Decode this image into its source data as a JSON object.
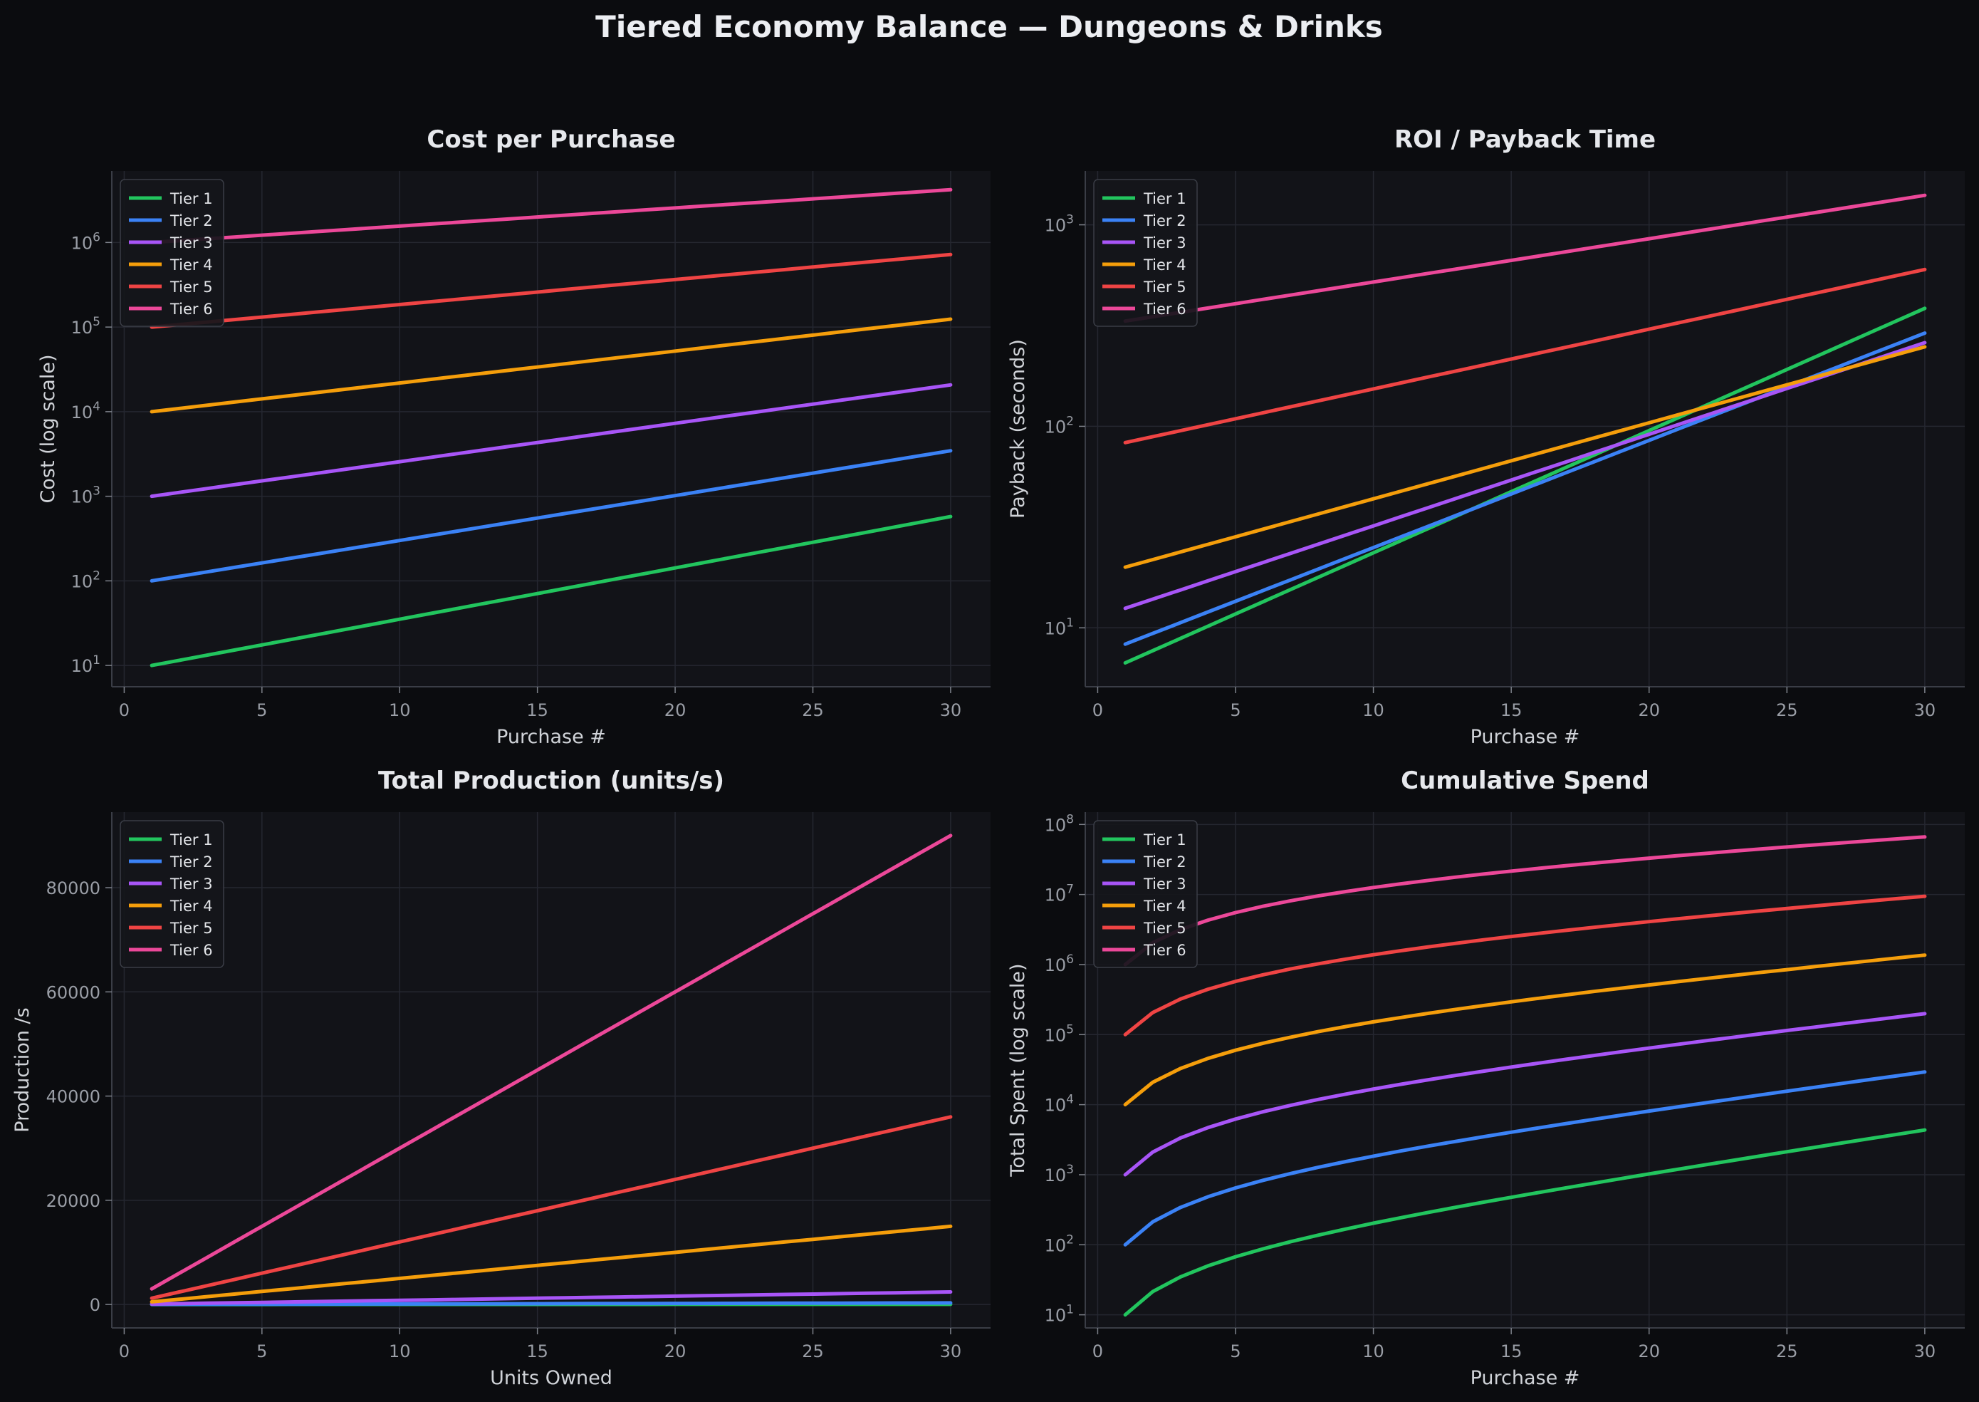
{
  "figure_title": "Tiered Economy Balance — Dungeons & Drinks",
  "colors": {
    "background": "#0b0c0f",
    "panel": "#121318",
    "Tier 1": "#22c55e",
    "Tier 2": "#3b82f6",
    "Tier 3": "#a855f7",
    "Tier 4": "#f59e0b",
    "Tier 5": "#ef4444",
    "Tier 6": "#ec4899"
  },
  "chart_data": [
    {
      "type": "line",
      "title": "Cost per Purchase",
      "xlabel": "Purchase #",
      "ylabel": "Cost (log scale)",
      "yscale": "log",
      "xlim": [
        -0.45,
        31.45
      ],
      "ylim": [
        5.6,
        7000000
      ],
      "xticks": [
        0,
        5,
        10,
        15,
        20,
        25,
        30
      ],
      "yticks": [
        {
          "v": 10,
          "exp": "1"
        },
        {
          "v": 100,
          "exp": "2"
        },
        {
          "v": 1000,
          "exp": "3"
        },
        {
          "v": 10000,
          "exp": "4"
        },
        {
          "v": 100000,
          "exp": "5"
        },
        {
          "v": 1000000,
          "exp": "6"
        }
      ],
      "grid": true,
      "legend": "top-left",
      "series": [
        {
          "name": "Tier 1",
          "model": "exp",
          "x0": 1,
          "x1": 30,
          "y0": 10,
          "y1": 575
        },
        {
          "name": "Tier 2",
          "model": "exp",
          "x0": 1,
          "x1": 30,
          "y0": 100,
          "y1": 3450
        },
        {
          "name": "Tier 3",
          "model": "exp",
          "x0": 1,
          "x1": 30,
          "y0": 1000,
          "y1": 20700
        },
        {
          "name": "Tier 4",
          "model": "exp",
          "x0": 1,
          "x1": 30,
          "y0": 10000,
          "y1": 124000
        },
        {
          "name": "Tier 5",
          "model": "exp",
          "x0": 1,
          "x1": 30,
          "y0": 100000,
          "y1": 720000
        },
        {
          "name": "Tier 6",
          "model": "exp",
          "x0": 1,
          "x1": 30,
          "y0": 1000000,
          "y1": 4200000
        }
      ]
    },
    {
      "type": "line",
      "title": "ROI / Payback Time",
      "xlabel": "Purchase #",
      "ylabel": "Payback (seconds)",
      "yscale": "log",
      "xlim": [
        -0.45,
        31.45
      ],
      "ylim": [
        5.1,
        1850
      ],
      "xticks": [
        0,
        5,
        10,
        15,
        20,
        25,
        30
      ],
      "yticks": [
        {
          "v": 10,
          "exp": "1"
        },
        {
          "v": 100,
          "exp": "2"
        },
        {
          "v": 1000,
          "exp": "3"
        }
      ],
      "grid": true,
      "legend": "top-left",
      "series": [
        {
          "name": "Tier 1",
          "model": "exp",
          "x0": 1,
          "x1": 30,
          "y0": 6.7,
          "y1": 385
        },
        {
          "name": "Tier 2",
          "model": "exp",
          "x0": 1,
          "x1": 30,
          "y0": 8.3,
          "y1": 290
        },
        {
          "name": "Tier 3",
          "model": "exp",
          "x0": 1,
          "x1": 30,
          "y0": 12.5,
          "y1": 260
        },
        {
          "name": "Tier 4",
          "model": "exp",
          "x0": 1,
          "x1": 30,
          "y0": 20,
          "y1": 248
        },
        {
          "name": "Tier 5",
          "model": "exp",
          "x0": 1,
          "x1": 30,
          "y0": 83,
          "y1": 600
        },
        {
          "name": "Tier 6",
          "model": "exp",
          "x0": 1,
          "x1": 30,
          "y0": 333,
          "y1": 1400
        }
      ]
    },
    {
      "type": "line",
      "title": "Total Production (units/s)",
      "xlabel": "Units Owned",
      "ylabel": "Production /s",
      "yscale": "linear",
      "xlim": [
        -0.45,
        31.45
      ],
      "ylim": [
        -4500,
        94500
      ],
      "xticks": [
        0,
        5,
        10,
        15,
        20,
        25,
        30
      ],
      "yticks": [
        {
          "v": 0,
          "label": "0"
        },
        {
          "v": 20000,
          "label": "20000"
        },
        {
          "v": 40000,
          "label": "40000"
        },
        {
          "v": 60000,
          "label": "60000"
        },
        {
          "v": 80000,
          "label": "80000"
        }
      ],
      "grid": true,
      "legend": "top-left",
      "series": [
        {
          "name": "Tier 1",
          "model": "lin",
          "x0": 1,
          "x1": 30,
          "y0": 1,
          "y1": 30
        },
        {
          "name": "Tier 2",
          "model": "lin",
          "x0": 1,
          "x1": 30,
          "y0": 10,
          "y1": 300
        },
        {
          "name": "Tier 3",
          "model": "lin",
          "x0": 1,
          "x1": 30,
          "y0": 80,
          "y1": 2400
        },
        {
          "name": "Tier 4",
          "model": "lin",
          "x0": 1,
          "x1": 30,
          "y0": 500,
          "y1": 15000
        },
        {
          "name": "Tier 5",
          "model": "lin",
          "x0": 1,
          "x1": 30,
          "y0": 1200,
          "y1": 36000
        },
        {
          "name": "Tier 6",
          "model": "lin",
          "x0": 1,
          "x1": 30,
          "y0": 3000,
          "y1": 90000
        }
      ]
    },
    {
      "type": "line",
      "title": "Cumulative Spend",
      "xlabel": "Purchase #",
      "ylabel": "Total Spent (log scale)",
      "yscale": "log",
      "xlim": [
        -0.45,
        31.45
      ],
      "ylim": [
        6.5,
        150000000
      ],
      "xticks": [
        0,
        5,
        10,
        15,
        20,
        25,
        30
      ],
      "yticks": [
        {
          "v": 10,
          "exp": "1"
        },
        {
          "v": 100,
          "exp": "2"
        },
        {
          "v": 1000,
          "exp": "3"
        },
        {
          "v": 10000,
          "exp": "4"
        },
        {
          "v": 100000,
          "exp": "5"
        },
        {
          "v": 1000000,
          "exp": "6"
        },
        {
          "v": 10000000,
          "exp": "7"
        },
        {
          "v": 100000000,
          "exp": "8"
        }
      ],
      "grid": true,
      "legend": "top-left",
      "series": [
        {
          "name": "Tier 1",
          "model": "cumexp",
          "x0": 1,
          "x1": 30,
          "base": 10,
          "rate": 1.15
        },
        {
          "name": "Tier 2",
          "model": "cumexp",
          "x0": 1,
          "x1": 30,
          "base": 100,
          "rate": 1.13
        },
        {
          "name": "Tier 3",
          "model": "cumexp",
          "x0": 1,
          "x1": 30,
          "base": 1000,
          "rate": 1.11
        },
        {
          "name": "Tier 4",
          "model": "cumexp",
          "x0": 1,
          "x1": 30,
          "base": 10000,
          "rate": 1.09
        },
        {
          "name": "Tier 5",
          "model": "cumexp",
          "x0": 1,
          "x1": 30,
          "base": 100000,
          "rate": 1.07
        },
        {
          "name": "Tier 6",
          "model": "cumexp",
          "x0": 1,
          "x1": 30,
          "base": 1000000,
          "rate": 1.05
        }
      ]
    }
  ]
}
